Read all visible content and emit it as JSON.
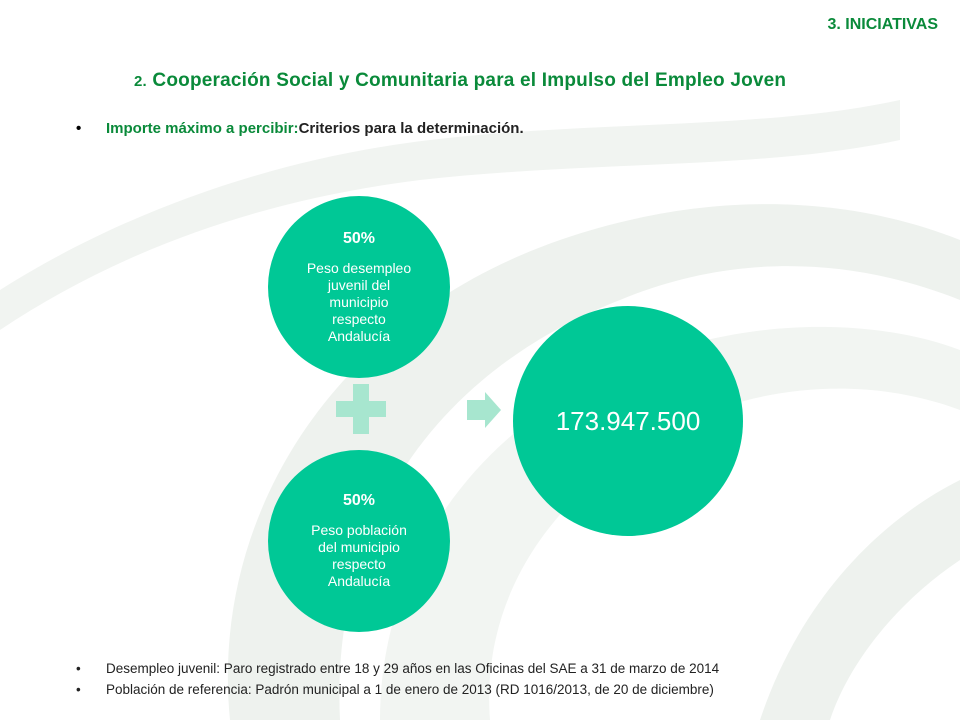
{
  "header": {
    "section": "3. INICIATIVAS",
    "subtitle_num": "2.",
    "subtitle": "Cooperación Social y Comunitaria para el Impulso del Empleo Joven"
  },
  "bullet_main": {
    "lead": "Importe máximo a percibir:",
    "rest": "Criterios para la determinación",
    "end": "."
  },
  "diagram": {
    "circle_top": {
      "percent": "50%",
      "text": "Peso desempleo juvenil del municipio respecto Andalucía"
    },
    "circle_bottom": {
      "percent": "50%",
      "text": "Peso población del municipio respecto Andalucía"
    },
    "result": "173.947.500"
  },
  "footnotes": [
    "Desempleo juvenil: Paro registrado entre 18 y 29 años en las Oficinas del SAE a 31 de marzo de 2014",
    "Población de referencia: Padrón municipal a 1 de enero de 2013 (RD 1016/2013, de 20 de diciembre)"
  ],
  "colors": {
    "accent_green": "#0a8a3a",
    "circle_teal": "#00c896",
    "connector_light": "#a7e6cf",
    "background_swirl": "#eef2ee"
  }
}
